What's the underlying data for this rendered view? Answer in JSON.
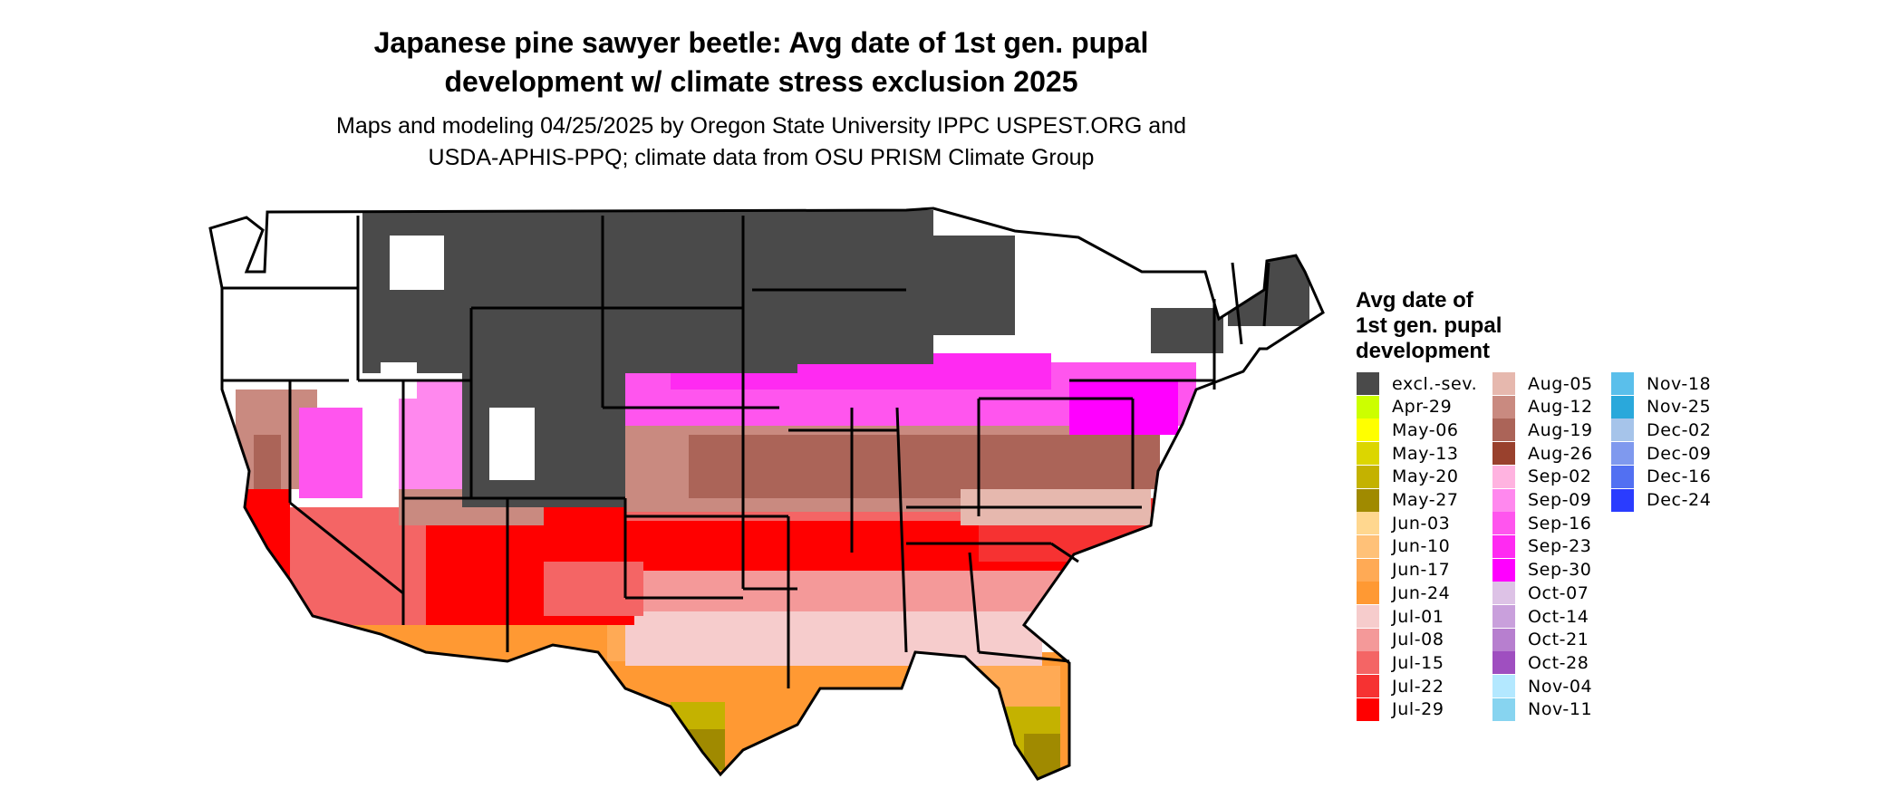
{
  "title_line1": "Japanese pine sawyer beetle: Avg date of 1st gen. pupal",
  "title_line2": "development w/ climate stress exclusion 2025",
  "subtitle_line1": "Maps and modeling 04/25/2025 by Oregon State University IPPC USPEST.ORG and",
  "subtitle_line2": "USDA-APHIS-PPQ; climate data from OSU PRISM Climate Group",
  "legend": {
    "title_lines": [
      "Avg date of",
      "1st gen. pupal",
      "development"
    ],
    "columns": [
      [
        {
          "label": "excl.-sev.",
          "color": "#4a4a4a"
        },
        {
          "label": "Apr-29",
          "color": "#ccff00"
        },
        {
          "label": "May-06",
          "color": "#ffff00"
        },
        {
          "label": "May-13",
          "color": "#dcd600"
        },
        {
          "label": "May-20",
          "color": "#c4b200"
        },
        {
          "label": "May-27",
          "color": "#a08a00"
        },
        {
          "label": "Jun-03",
          "color": "#ffd78f"
        },
        {
          "label": "Jun-10",
          "color": "#ffc178"
        },
        {
          "label": "Jun-17",
          "color": "#ffaa55"
        },
        {
          "label": "Jun-24",
          "color": "#ff9933"
        },
        {
          "label": "Jul-01",
          "color": "#f6cccc"
        },
        {
          "label": "Jul-08",
          "color": "#f49999"
        },
        {
          "label": "Jul-15",
          "color": "#f46565"
        },
        {
          "label": "Jul-22",
          "color": "#f63232"
        },
        {
          "label": "Jul-29",
          "color": "#ff0000"
        }
      ],
      [
        {
          "label": "Aug-05",
          "color": "#e6b8ae"
        },
        {
          "label": "Aug-12",
          "color": "#c98a80"
        },
        {
          "label": "Aug-19",
          "color": "#ab6458"
        },
        {
          "label": "Aug-26",
          "color": "#99412d"
        },
        {
          "label": "Sep-02",
          "color": "#ffb3e0"
        },
        {
          "label": "Sep-09",
          "color": "#ff88ee"
        },
        {
          "label": "Sep-16",
          "color": "#ff55ee"
        },
        {
          "label": "Sep-23",
          "color": "#ff2af2"
        },
        {
          "label": "Sep-30",
          "color": "#ff00ff"
        },
        {
          "label": "Oct-07",
          "color": "#ddc2e6"
        },
        {
          "label": "Oct-14",
          "color": "#c9a0dc"
        },
        {
          "label": "Oct-21",
          "color": "#b77fcf"
        },
        {
          "label": "Oct-28",
          "color": "#9f4fc0"
        },
        {
          "label": "Nov-04",
          "color": "#b3e8ff"
        },
        {
          "label": "Nov-11",
          "color": "#87d4f0"
        }
      ],
      [
        {
          "label": "Nov-18",
          "color": "#5abfeb"
        },
        {
          "label": "Nov-25",
          "color": "#2aa8db"
        },
        {
          "label": "Dec-02",
          "color": "#a6c4ea"
        },
        {
          "label": "Dec-09",
          "color": "#7f99ee"
        },
        {
          "label": "Dec-16",
          "color": "#5270f2"
        },
        {
          "label": "Dec-24",
          "color": "#2a3cff"
        }
      ]
    ]
  },
  "map_colors": {
    "excluded": "#4a4a4a",
    "none": "#ffffff",
    "border": "#000000"
  }
}
